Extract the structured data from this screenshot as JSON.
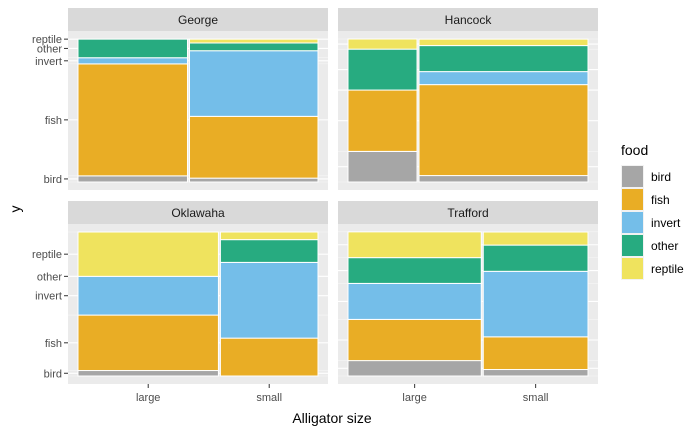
{
  "chart_data": {
    "type": "mosaic",
    "xlabel": "Alligator size",
    "ylabel": "y",
    "x_categories": [
      "large",
      "small"
    ],
    "y_axis_labels": [
      "bird",
      "fish",
      "invert",
      "other",
      "reptile"
    ],
    "legend": {
      "title": "food",
      "position": "right",
      "items": [
        {
          "name": "bird",
          "color": "#A6A6A6"
        },
        {
          "name": "fish",
          "color": "#E9AD25"
        },
        {
          "name": "invert",
          "color": "#74BEE9"
        },
        {
          "name": "other",
          "color": "#27AB80"
        },
        {
          "name": "reptile",
          "color": "#EFE35E"
        }
      ]
    },
    "grid": true,
    "panels": [
      {
        "name": "George",
        "columns": [
          {
            "size": "large",
            "width": 0.46,
            "proportions": {
              "bird": 0.043,
              "fish": 0.783,
              "invert": 0.043,
              "other": 0.13,
              "reptile": 0.0
            }
          },
          {
            "size": "small",
            "width": 0.54,
            "proportions": {
              "bird": 0.027,
              "fish": 0.432,
              "invert": 0.459,
              "other": 0.054,
              "reptile": 0.027
            }
          }
        ]
      },
      {
        "name": "Hancock",
        "columns": [
          {
            "size": "large",
            "width": 0.29,
            "proportions": {
              "bird": 0.214,
              "fish": 0.429,
              "invert": 0.0,
              "other": 0.286,
              "reptile": 0.071
            }
          },
          {
            "size": "small",
            "width": 0.71,
            "proportions": {
              "bird": 0.045,
              "fish": 0.636,
              "invert": 0.091,
              "other": 0.182,
              "reptile": 0.045
            }
          }
        ]
      },
      {
        "name": "Oklawaha",
        "columns": [
          {
            "size": "large",
            "width": 0.59,
            "proportions": {
              "bird": 0.038,
              "fish": 0.385,
              "invert": 0.269,
              "other": 0.0,
              "reptile": 0.308
            }
          },
          {
            "size": "small",
            "width": 0.41,
            "proportions": {
              "bird": 0.0,
              "fish": 0.263,
              "invert": 0.526,
              "other": 0.158,
              "reptile": 0.053
            }
          }
        ]
      },
      {
        "name": "Trafford",
        "columns": [
          {
            "size": "large",
            "width": 0.56,
            "proportions": {
              "bird": 0.107,
              "fish": 0.286,
              "invert": 0.25,
              "other": 0.179,
              "reptile": 0.179
            }
          },
          {
            "size": "small",
            "width": 0.44,
            "proportions": {
              "bird": 0.045,
              "fish": 0.227,
              "invert": 0.455,
              "other": 0.182,
              "reptile": 0.091
            }
          }
        ]
      }
    ]
  }
}
